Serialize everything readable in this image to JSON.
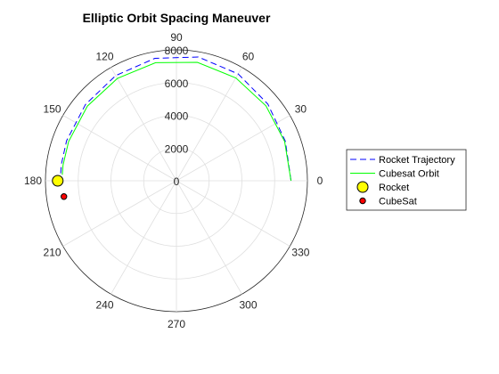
{
  "chart_data": {
    "type": "polar-line",
    "title": "Elliptic Orbit Spacing Maneuver",
    "rlim": [
      0,
      8000
    ],
    "r_ticks": [
      0,
      2000,
      4000,
      6000,
      8000
    ],
    "theta_ticks": [
      0,
      30,
      60,
      90,
      120,
      150,
      180,
      210,
      240,
      270,
      300,
      330
    ],
    "grid": true,
    "legend_position": "right",
    "series": [
      {
        "name": "Rocket Trajectory",
        "style": "dashed",
        "color": "#0000ff",
        "points": [
          {
            "theta": 0,
            "r": 7000
          },
          {
            "theta": 20,
            "r": 7080
          },
          {
            "theta": 40,
            "r": 7290
          },
          {
            "theta": 60,
            "r": 7540
          },
          {
            "theta": 80,
            "r": 7680
          },
          {
            "theta": 100,
            "r": 7600
          },
          {
            "theta": 120,
            "r": 7420
          },
          {
            "theta": 140,
            "r": 7250
          },
          {
            "theta": 160,
            "r": 7140
          },
          {
            "theta": 172,
            "r": 7100
          },
          {
            "theta": 180,
            "r": 7100
          }
        ]
      },
      {
        "name": "Cubesat Orbit",
        "style": "solid",
        "color": "#00ff00",
        "points": [
          {
            "theta": 0,
            "r": 7000
          },
          {
            "theta": 20,
            "r": 7030
          },
          {
            "theta": 40,
            "r": 7130
          },
          {
            "theta": 60,
            "r": 7260
          },
          {
            "theta": 80,
            "r": 7350
          },
          {
            "theta": 100,
            "r": 7330
          },
          {
            "theta": 120,
            "r": 7220
          },
          {
            "theta": 140,
            "r": 7100
          },
          {
            "theta": 160,
            "r": 7010
          },
          {
            "theta": 172,
            "r": 6990
          },
          {
            "theta": 177,
            "r": 6980
          }
        ]
      },
      {
        "name": "Rocket",
        "style": "marker",
        "color": "#ffff00",
        "points": [
          {
            "theta": 180,
            "r": 7250
          }
        ]
      },
      {
        "name": "CubeSat",
        "style": "marker",
        "color": "#ff0000",
        "points": [
          {
            "theta": 188,
            "r": 6940
          }
        ]
      }
    ]
  }
}
